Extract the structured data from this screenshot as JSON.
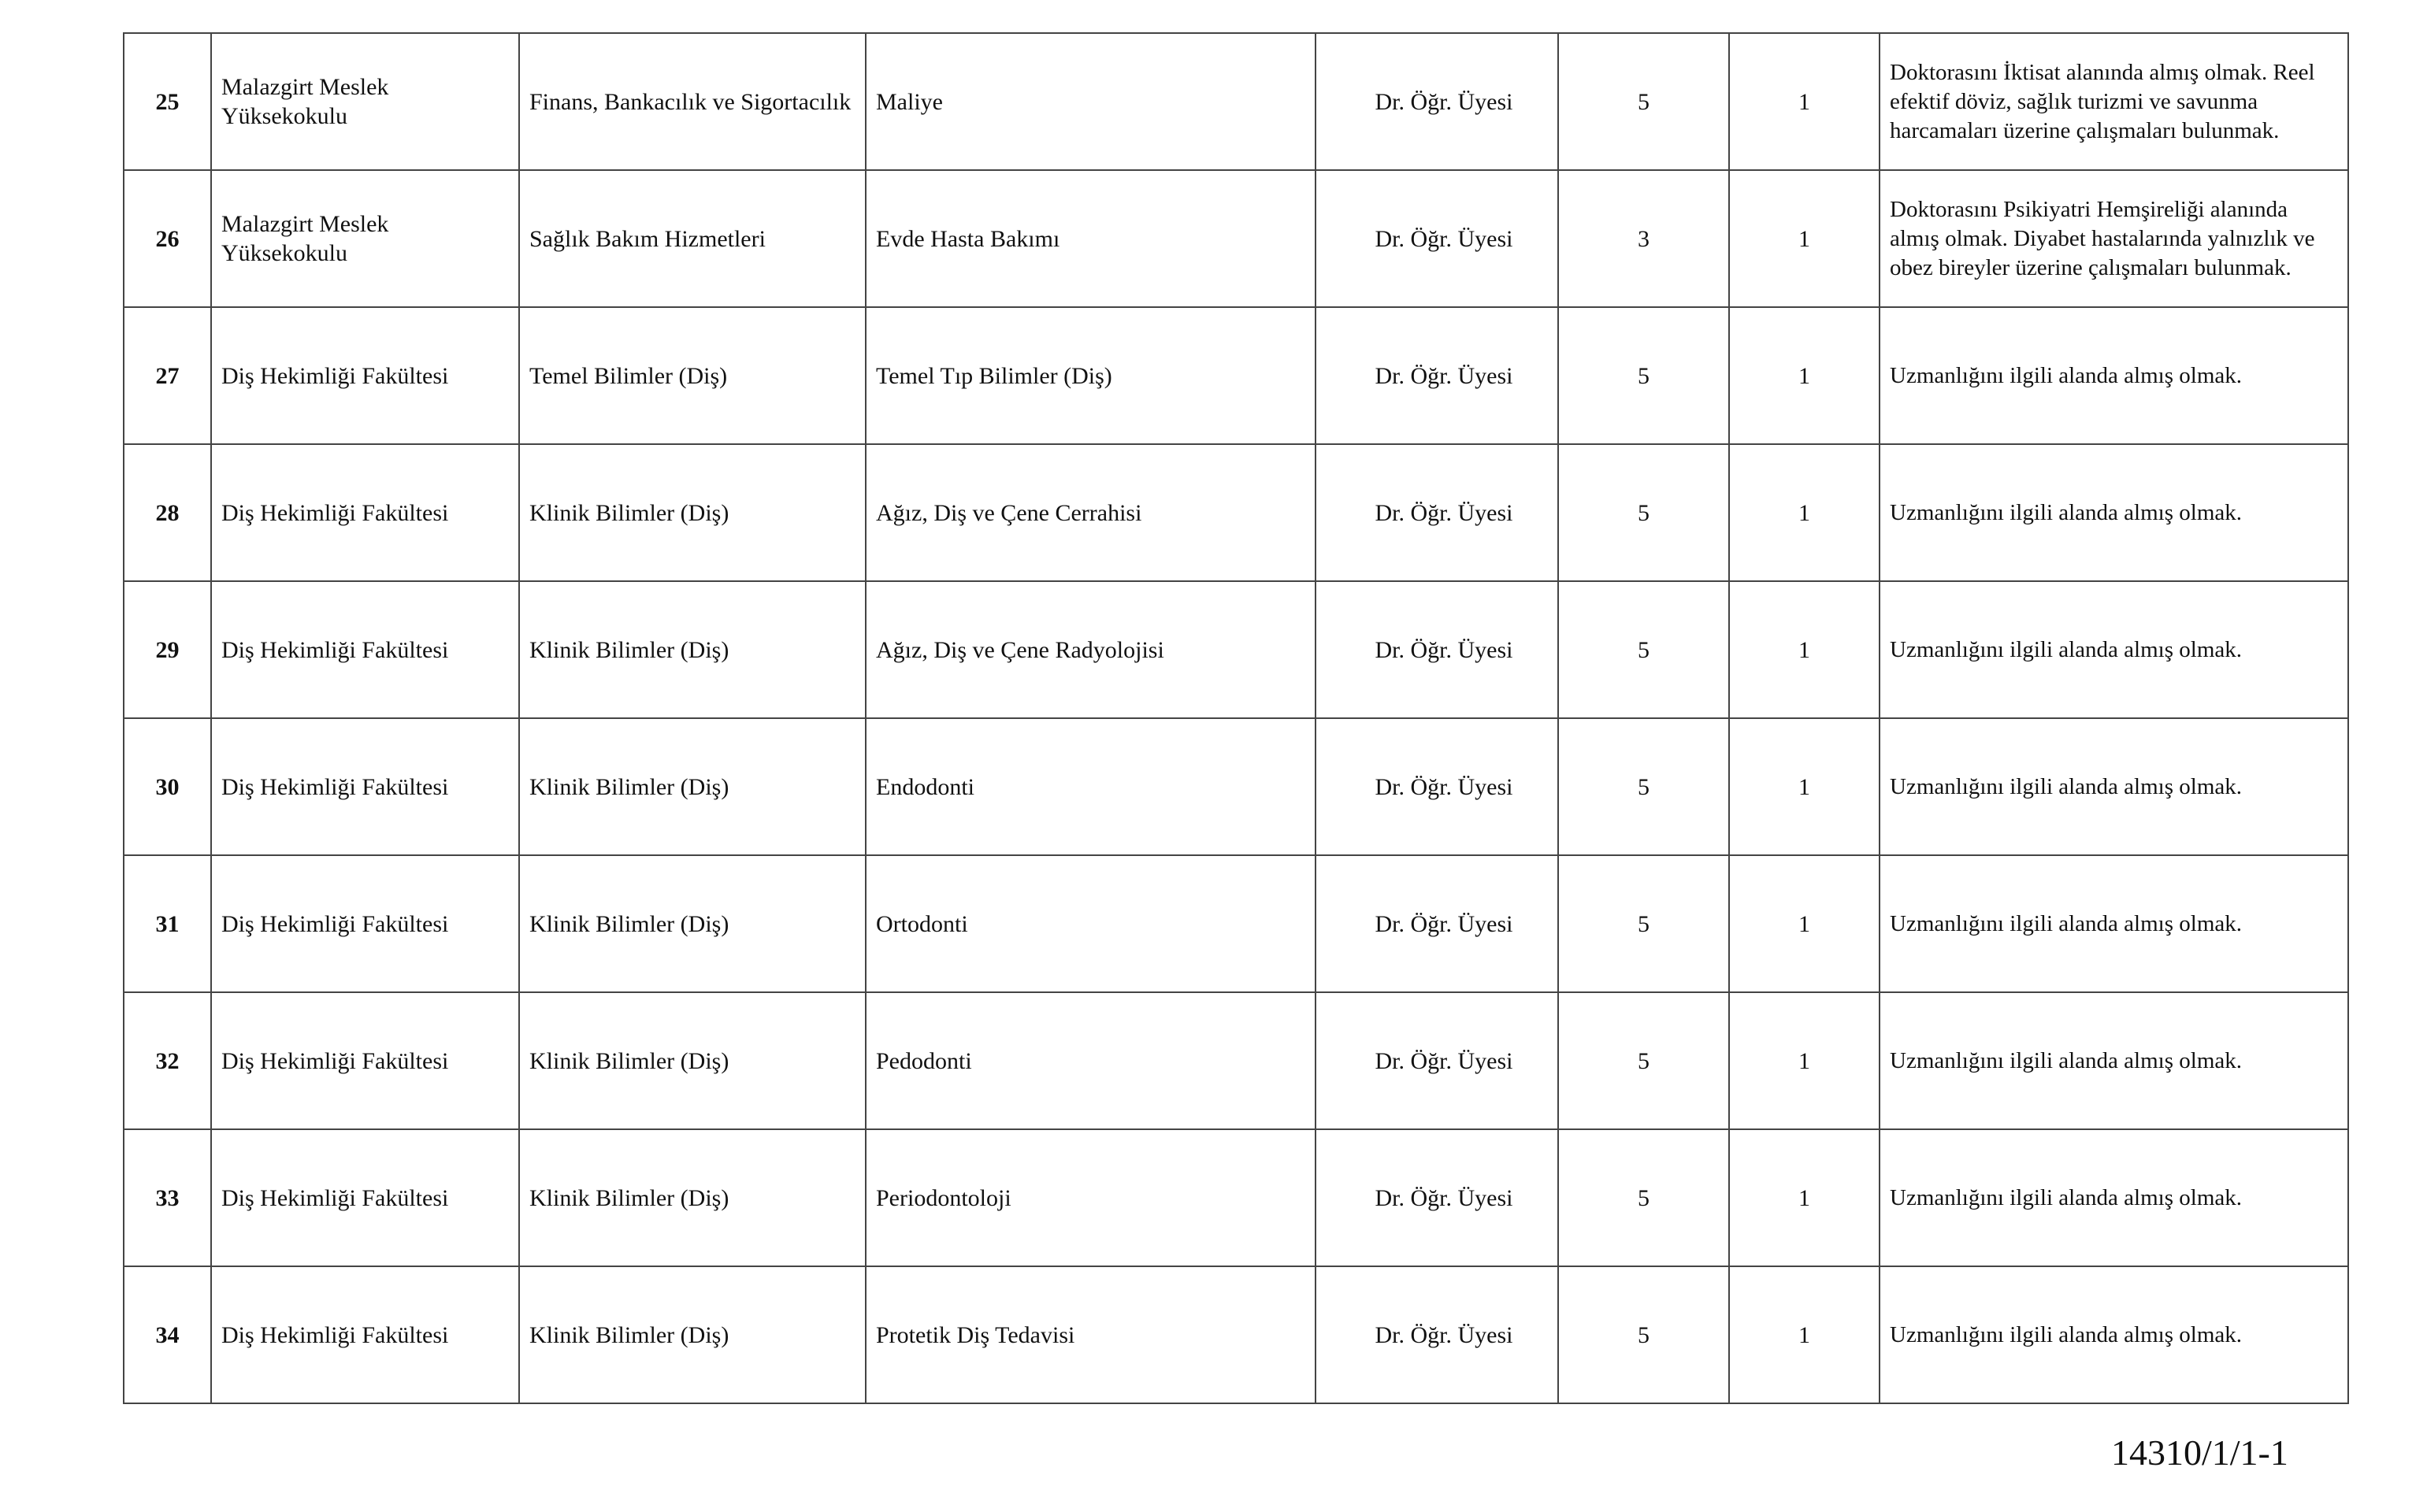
{
  "rows": [
    {
      "no": "25",
      "unit": "Malazgirt Meslek Yüksekokulu",
      "department": "Finans, Bankacılık ve Sigortacılık",
      "field": "Maliye",
      "title": "Dr. Öğr. Üyesi",
      "degree": "5",
      "count": "1",
      "condition": "Doktorasını İktisat alanında almış olmak. Reel efektif döviz, sağlık turizmi ve savunma harcamaları üzerine çalışmaları bulunmak."
    },
    {
      "no": "26",
      "unit": "Malazgirt Meslek Yüksekokulu",
      "department": "Sağlık Bakım Hizmetleri",
      "field": "Evde Hasta Bakımı",
      "title": "Dr. Öğr. Üyesi",
      "degree": "3",
      "count": "1",
      "condition": "Doktorasını Psikiyatri Hemşireliği alanında almış olmak. Diyabet hastalarında yalnızlık ve obez bireyler üzerine çalışmaları bulunmak."
    },
    {
      "no": "27",
      "unit": "Diş Hekimliği Fakültesi",
      "department": "Temel Bilimler (Diş)",
      "field": "Temel Tıp Bilimler (Diş)",
      "title": "Dr. Öğr. Üyesi",
      "degree": "5",
      "count": "1",
      "condition": "Uzmanlığını ilgili alanda almış olmak."
    },
    {
      "no": "28",
      "unit": "Diş Hekimliği Fakültesi",
      "department": "Klinik Bilimler (Diş)",
      "field": "Ağız, Diş ve Çene Cerrahisi",
      "title": "Dr. Öğr. Üyesi",
      "degree": "5",
      "count": "1",
      "condition": "Uzmanlığını ilgili alanda almış olmak."
    },
    {
      "no": "29",
      "unit": "Diş Hekimliği Fakültesi",
      "department": "Klinik Bilimler (Diş)",
      "field": "Ağız, Diş ve Çene Radyolojisi",
      "title": "Dr. Öğr. Üyesi",
      "degree": "5",
      "count": "1",
      "condition": "Uzmanlığını ilgili alanda almış olmak."
    },
    {
      "no": "30",
      "unit": "Diş Hekimliği Fakültesi",
      "department": "Klinik Bilimler (Diş)",
      "field": "Endodonti",
      "title": "Dr. Öğr. Üyesi",
      "degree": "5",
      "count": "1",
      "condition": "Uzmanlığını ilgili alanda almış olmak."
    },
    {
      "no": "31",
      "unit": "Diş Hekimliği Fakültesi",
      "department": "Klinik Bilimler (Diş)",
      "field": "Ortodonti",
      "title": "Dr. Öğr. Üyesi",
      "degree": "5",
      "count": "1",
      "condition": "Uzmanlığını ilgili alanda almış olmak."
    },
    {
      "no": "32",
      "unit": "Diş Hekimliği Fakültesi",
      "department": "Klinik Bilimler (Diş)",
      "field": "Pedodonti",
      "title": "Dr. Öğr. Üyesi",
      "degree": "5",
      "count": "1",
      "condition": "Uzmanlığını ilgili alanda almış olmak."
    },
    {
      "no": "33",
      "unit": "Diş Hekimliği Fakültesi",
      "department": "Klinik Bilimler (Diş)",
      "field": "Periodontoloji",
      "title": "Dr. Öğr. Üyesi",
      "degree": "5",
      "count": "1",
      "condition": "Uzmanlığını ilgili alanda almış olmak."
    },
    {
      "no": "34",
      "unit": "Diş Hekimliği Fakültesi",
      "department": "Klinik Bilimler (Diş)",
      "field": "Protetik Diş Tedavisi",
      "title": "Dr. Öğr. Üyesi",
      "degree": "5",
      "count": "1",
      "condition": "Uzmanlığını ilgili alanda almış olmak."
    }
  ],
  "footer": {
    "document_code": "14310/1/1-1"
  }
}
